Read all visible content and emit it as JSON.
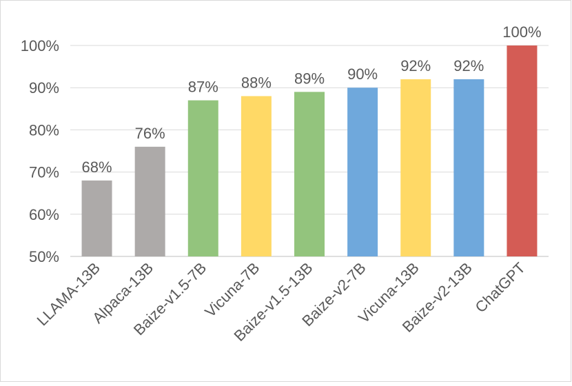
{
  "chart_data": {
    "type": "bar",
    "title": "",
    "xlabel": "",
    "ylabel": "",
    "categories": [
      "LLAMA-13B",
      "Alpaca-13B",
      "Baize-v1.5-7B",
      "Vicuna-7B",
      "Baize-v1.5-13B",
      "Baize-v2-7B",
      "Vicuna-13B",
      "Baize-v2-13B",
      "ChatGPT"
    ],
    "values": [
      68,
      76,
      87,
      88,
      89,
      90,
      92,
      92,
      100
    ],
    "value_labels": [
      "68%",
      "76%",
      "87%",
      "88%",
      "89%",
      "90%",
      "92%",
      "92%",
      "100%"
    ],
    "colors": [
      "#ADAAA9",
      "#ADAAA9",
      "#93C47D",
      "#FFD966",
      "#93C47D",
      "#6FA8DC",
      "#FFD966",
      "#6FA8DC",
      "#D45C55"
    ],
    "ylim": [
      50,
      100
    ],
    "yticks": [
      50,
      60,
      70,
      80,
      90,
      100
    ],
    "ytick_labels": [
      "50%",
      "60%",
      "70%",
      "80%",
      "90%",
      "100%"
    ],
    "grid": true,
    "legend": "none"
  }
}
